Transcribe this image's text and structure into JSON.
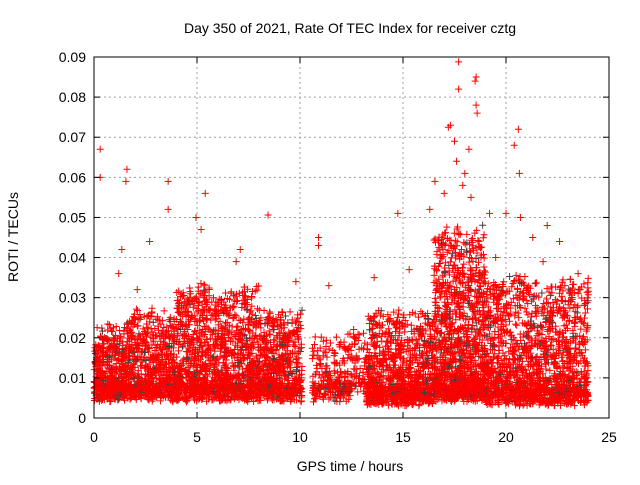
{
  "chart_data": {
    "type": "scatter",
    "title": "Day 350 of 2021, Rate Of TEC Index for receiver cztg",
    "xlabel": "GPS time / hours",
    "ylabel": "ROTI / TECUs",
    "xlim": [
      0,
      25
    ],
    "ylim": [
      0,
      0.09
    ],
    "xticks": [
      "0",
      "5",
      "10",
      "15",
      "20",
      "25"
    ],
    "xtick_values": [
      0,
      5,
      10,
      15,
      20,
      25
    ],
    "yticks": [
      "0",
      "0.01",
      "0.02",
      "0.03",
      "0.04",
      "0.05",
      "0.06",
      "0.07",
      "0.08",
      "0.09"
    ],
    "ytick_values": [
      0,
      0.01,
      0.02,
      0.03,
      0.04,
      0.05,
      0.06,
      0.07,
      0.08,
      0.09
    ],
    "grid": true,
    "marker": "plus",
    "colors": {
      "primary": "#ff0000",
      "secondary": "#404040",
      "grid": "#a0a0a0"
    },
    "dense_bands": [
      {
        "x": [
          0,
          1.5
        ],
        "y": [
          0.004,
          0.02
        ],
        "count": 500
      },
      {
        "x": [
          1.5,
          4
        ],
        "y": [
          0.004,
          0.024
        ],
        "count": 700
      },
      {
        "x": [
          4,
          8
        ],
        "y": [
          0.004,
          0.03
        ],
        "count": 1300
      },
      {
        "x": [
          8,
          10.1
        ],
        "y": [
          0.004,
          0.024
        ],
        "count": 600
      },
      {
        "x": [
          10.6,
          12.5
        ],
        "y": [
          0.004,
          0.018
        ],
        "count": 250
      },
      {
        "x": [
          12.5,
          13.2
        ],
        "y": [
          0.006,
          0.02
        ],
        "count": 60
      },
      {
        "x": [
          13.2,
          16.5
        ],
        "y": [
          0.003,
          0.024
        ],
        "count": 1000
      },
      {
        "x": [
          16.5,
          19
        ],
        "y": [
          0.004,
          0.045
        ],
        "count": 1200
      },
      {
        "x": [
          19,
          24
        ],
        "y": [
          0.003,
          0.032
        ],
        "count": 1500
      }
    ],
    "secondary_fraction": 0.06,
    "outliers": [
      [
        0.3,
        0.067
      ],
      [
        0.3,
        0.06
      ],
      [
        1.6,
        0.062
      ],
      [
        1.55,
        0.059
      ],
      [
        3.6,
        0.059
      ],
      [
        3.6,
        0.052
      ],
      [
        5.4,
        0.056
      ],
      [
        4.95,
        0.05
      ],
      [
        8.45,
        0.0506
      ],
      [
        10.9,
        0.045
      ],
      [
        10.9,
        0.043
      ],
      [
        14.75,
        0.051
      ],
      [
        17.7,
        0.0888
      ],
      [
        17.7,
        0.082
      ],
      [
        18.55,
        0.085
      ],
      [
        18.5,
        0.084
      ],
      [
        17.2,
        0.0725
      ],
      [
        17.3,
        0.073
      ],
      [
        18.55,
        0.078
      ],
      [
        18.6,
        0.076
      ],
      [
        20.6,
        0.072
      ],
      [
        20.65,
        0.061
      ],
      [
        20,
        0.051
      ],
      [
        19.2,
        0.051
      ],
      [
        22,
        0.048
      ],
      [
        22.6,
        0.044
      ],
      [
        2.7,
        0.044
      ],
      [
        1.35,
        0.042
      ],
      [
        7.1,
        0.042
      ],
      [
        17.5,
        0.069
      ],
      [
        18.2,
        0.067
      ],
      [
        16.55,
        0.059
      ],
      [
        16.3,
        0.052
      ],
      [
        17.6,
        0.064
      ],
      [
        18.0,
        0.061
      ],
      [
        17.0,
        0.056
      ],
      [
        17.9,
        0.058
      ],
      [
        18.3,
        0.055
      ],
      [
        20.4,
        0.068
      ],
      [
        20.7,
        0.05
      ],
      [
        21.3,
        0.045
      ],
      [
        23.5,
        0.036
      ],
      [
        1.2,
        0.036
      ],
      [
        2.1,
        0.032
      ],
      [
        9.8,
        0.034
      ],
      [
        11.4,
        0.033
      ],
      [
        13.6,
        0.035
      ],
      [
        15.3,
        0.037
      ],
      [
        19.5,
        0.04
      ],
      [
        21.8,
        0.039
      ],
      [
        6.9,
        0.039
      ],
      [
        5.2,
        0.047
      ]
    ]
  }
}
